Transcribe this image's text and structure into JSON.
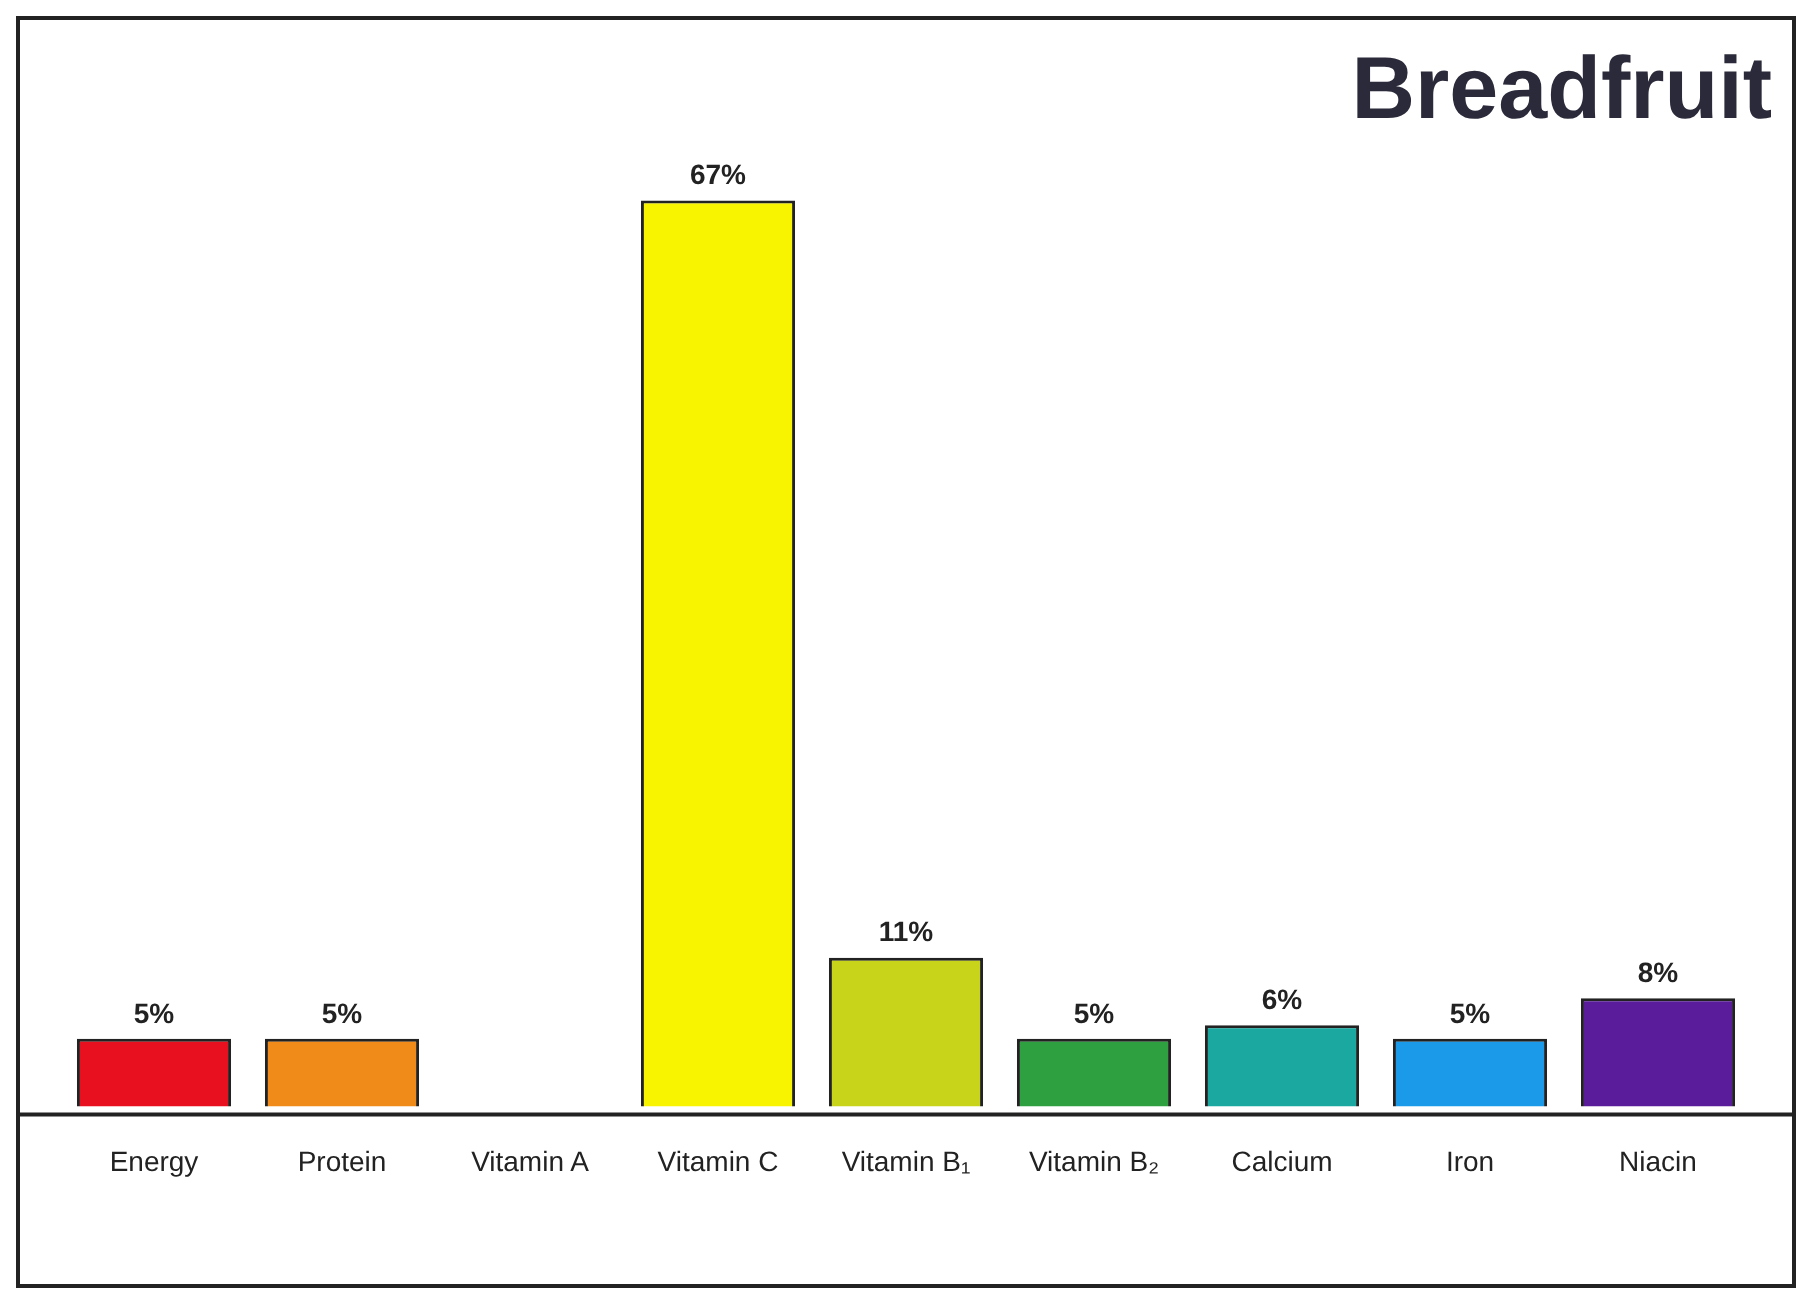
{
  "chart_data": {
    "type": "bar",
    "title": "Breadfruit",
    "categories": [
      "Energy",
      "Protein",
      "Vitamin A",
      "Vitamin C",
      "Vitamin B₁",
      "Vitamin B₂",
      "Calcium",
      "Iron",
      "Niacin"
    ],
    "values": [
      5,
      5,
      0,
      67,
      11,
      5,
      6,
      5,
      8
    ],
    "colors": [
      "#e8101e",
      "#f08a18",
      "#888888",
      "#f8f400",
      "#c8d41a",
      "#2ea040",
      "#1aa8a0",
      "#1a9ae8",
      "#5a1c9a"
    ],
    "value_labels": [
      "5%",
      "5%",
      null,
      "67%",
      "11%",
      "5%",
      "6%",
      "5%",
      "8%"
    ],
    "grid": false,
    "legend": false
  }
}
